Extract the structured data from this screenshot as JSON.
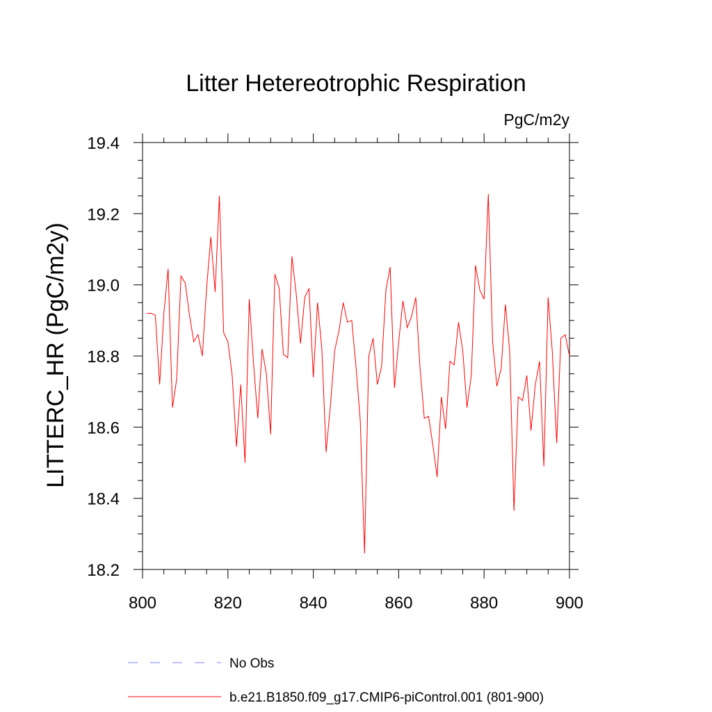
{
  "chart_data": {
    "type": "line",
    "title": "Litter Hetereotrophic Respiration",
    "units_label": "PgC/m2y",
    "ylabel": "LITTERC_HR  (PgC/m2y)",
    "xlabel": "",
    "xlim": [
      800,
      900
    ],
    "ylim": [
      18.2,
      19.4
    ],
    "x_ticks": [
      800,
      820,
      840,
      860,
      880,
      900
    ],
    "y_ticks": [
      18.2,
      18.4,
      18.6,
      18.8,
      19.0,
      19.2,
      19.4
    ],
    "x_tick_labels": [
      "800",
      "820",
      "840",
      "860",
      "880",
      "900"
    ],
    "y_tick_labels": [
      "18.2",
      "18.4",
      "18.6",
      "18.8",
      "19.0",
      "19.2",
      "19.4"
    ],
    "legend": [
      {
        "label": "No Obs",
        "color": "#8080ff",
        "style": "dashed"
      },
      {
        "label": "b.e21.B1850.f09_g17.CMIP6-piControl.001 (801-900)",
        "color": "#ff0000",
        "style": "solid"
      }
    ],
    "series": [
      {
        "name": "b.e21.B1850.f09_g17.CMIP6-piControl.001 (801-900)",
        "color": "#ff0000",
        "x": [
          801,
          802,
          803,
          804,
          805,
          806,
          807,
          808,
          809,
          810,
          811,
          812,
          813,
          814,
          815,
          816,
          817,
          818,
          819,
          820,
          821,
          822,
          823,
          824,
          825,
          826,
          827,
          828,
          829,
          830,
          831,
          832,
          833,
          834,
          835,
          836,
          837,
          838,
          839,
          840,
          841,
          842,
          843,
          844,
          845,
          846,
          847,
          848,
          849,
          850,
          851,
          852,
          853,
          854,
          855,
          856,
          857,
          858,
          859,
          860,
          861,
          862,
          863,
          864,
          865,
          866,
          867,
          868,
          869,
          870,
          871,
          872,
          873,
          874,
          875,
          876,
          877,
          878,
          879,
          880,
          881,
          882,
          883,
          884,
          885,
          886,
          887,
          888,
          889,
          890,
          891,
          892,
          893,
          894,
          895,
          896,
          897,
          898,
          899,
          900
        ],
        "values": [
          18.92,
          18.92,
          18.915,
          18.72,
          18.92,
          19.045,
          18.655,
          18.735,
          19.025,
          19.005,
          18.915,
          18.84,
          18.86,
          18.8,
          18.99,
          19.135,
          18.98,
          19.25,
          18.865,
          18.84,
          18.745,
          18.545,
          18.72,
          18.5,
          18.96,
          18.78,
          18.625,
          18.82,
          18.75,
          18.58,
          19.03,
          18.99,
          18.805,
          18.795,
          19.08,
          18.975,
          18.835,
          18.965,
          18.99,
          18.74,
          18.95,
          18.82,
          18.53,
          18.66,
          18.815,
          18.87,
          18.95,
          18.895,
          18.9,
          18.77,
          18.62,
          18.245,
          18.8,
          18.85,
          18.72,
          18.77,
          18.985,
          19.05,
          18.71,
          18.84,
          18.955,
          18.88,
          18.91,
          18.965,
          18.765,
          18.625,
          18.63,
          18.55,
          18.46,
          18.685,
          18.595,
          18.785,
          18.775,
          18.895,
          18.815,
          18.655,
          18.745,
          19.055,
          18.985,
          18.96,
          19.255,
          18.84,
          18.715,
          18.765,
          18.945,
          18.815,
          18.365,
          18.685,
          18.675,
          18.745,
          18.59,
          18.72,
          18.785,
          18.49,
          18.965,
          18.81,
          18.555,
          18.85,
          18.86,
          18.8
        ]
      }
    ]
  }
}
